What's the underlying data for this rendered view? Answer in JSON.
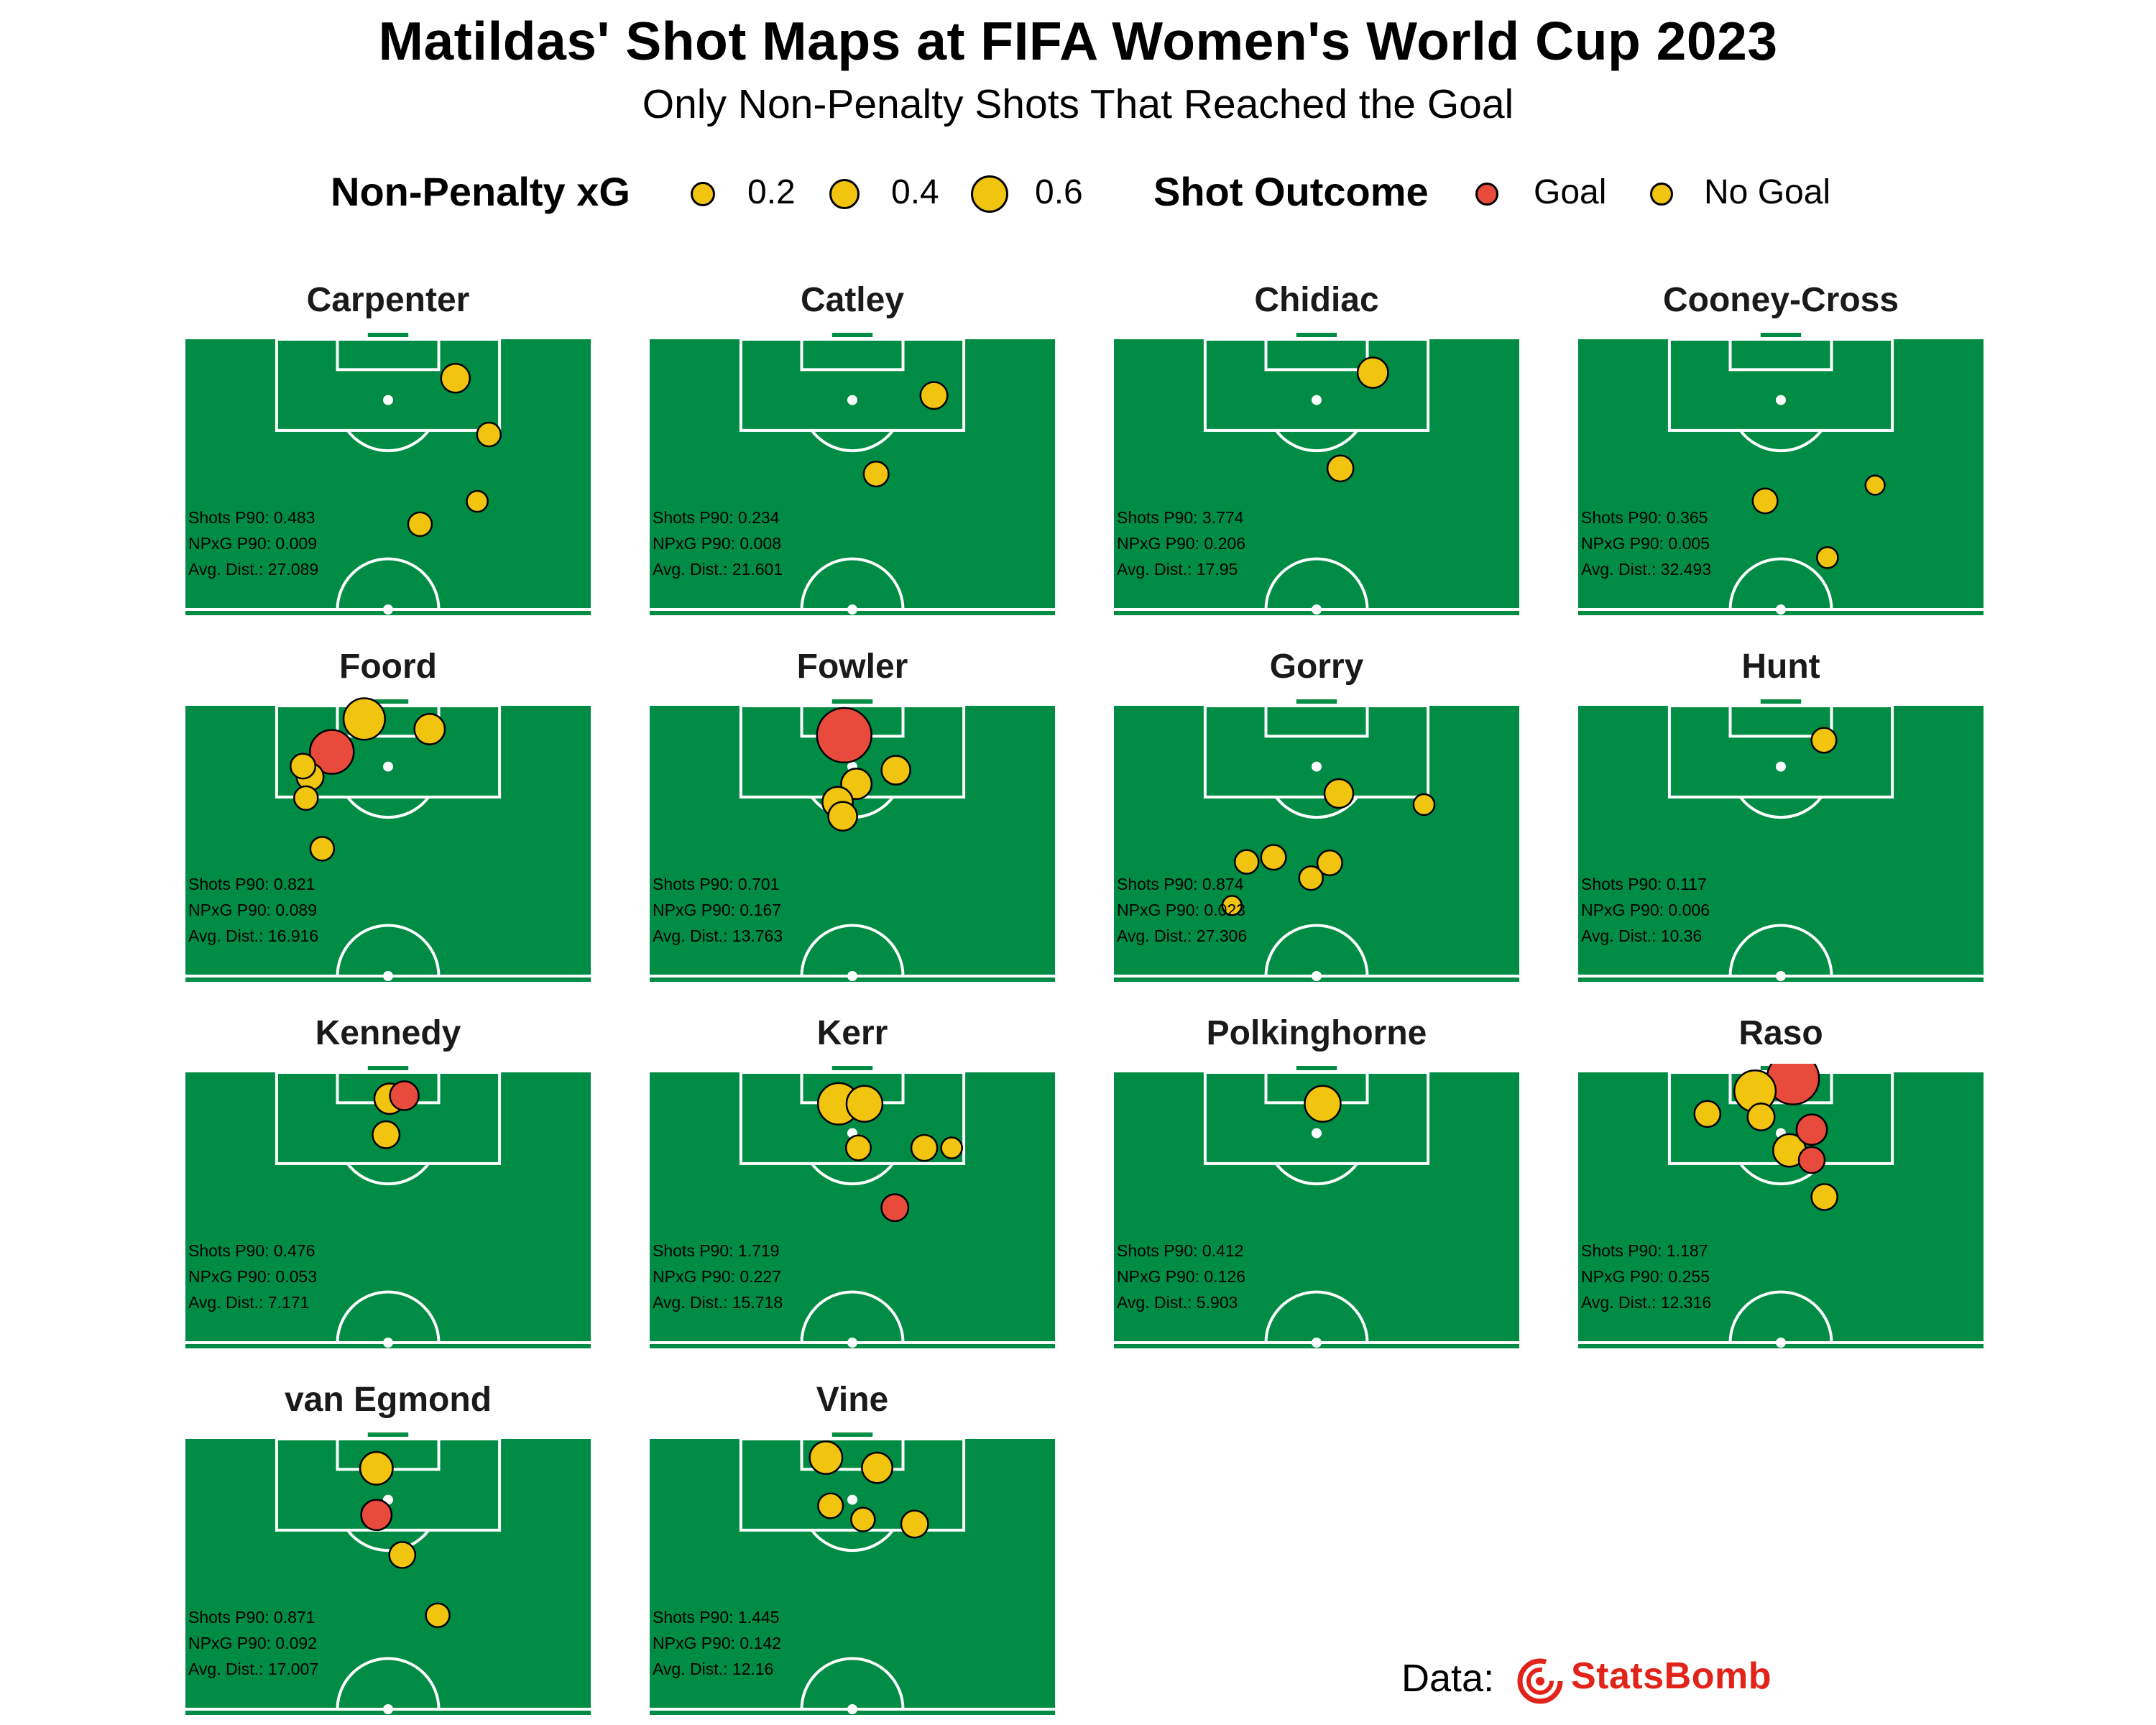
{
  "title": "Matildas' Shot Maps at FIFA Women's World Cup 2023",
  "subtitle": "Only Non-Penalty Shots That Reached the Goal",
  "legend": {
    "size_title": "Non-Penalty xG",
    "size_items": [
      {
        "label": "0.2",
        "value": 0.2
      },
      {
        "label": "0.4",
        "value": 0.4
      },
      {
        "label": "0.6",
        "value": 0.6
      }
    ],
    "outcome_title": "Shot Outcome",
    "outcome_items": [
      {
        "label": "Goal",
        "color": "#e84b3c"
      },
      {
        "label": "No Goal",
        "color": "#f1c40f"
      }
    ]
  },
  "colors": {
    "pitch": "#008c44",
    "lines": "#ffffff",
    "goal": "#e84b3c",
    "no_goal": "#f1c40f"
  },
  "credit": {
    "label": "Data:",
    "brand": "StatsBomb",
    "brand_icon": "statsbomb-logo-icon"
  },
  "chart_data": {
    "type": "scatter",
    "facet_by": "player",
    "x_axis": "pitch width (yards, 0-80)",
    "y_axis": "distance from goal line (yards)",
    "size_variable": "non-penalty xG",
    "color_variable": "shot outcome",
    "players": [
      {
        "name": "Carpenter",
        "stats": [
          "Shots P90: 0.483",
          "NPxG P90: 0.009",
          "Avg. Dist.: 27.089"
        ],
        "shots": [
          {
            "x": 53.3,
            "y": 7.7,
            "xg": 0.1,
            "outcome": "No Goal"
          },
          {
            "x": 59.9,
            "y": 18.8,
            "xg": 0.05,
            "outcome": "No Goal"
          },
          {
            "x": 57.6,
            "y": 32,
            "xg": 0.03,
            "outcome": "No Goal"
          },
          {
            "x": 46.3,
            "y": 36.5,
            "xg": 0.05,
            "outcome": "No Goal"
          }
        ]
      },
      {
        "name": "Catley",
        "stats": [
          "Shots P90: 0.234",
          "NPxG P90: 0.008",
          "Avg. Dist.: 21.601"
        ],
        "shots": [
          {
            "x": 56.1,
            "y": 11.1,
            "xg": 0.08,
            "outcome": "No Goal"
          },
          {
            "x": 44.7,
            "y": 26.6,
            "xg": 0.06,
            "outcome": "No Goal"
          }
        ]
      },
      {
        "name": "Chidiac",
        "stats": [
          "Shots P90: 3.774",
          "NPxG P90: 0.206",
          "Avg. Dist.: 17.95"
        ],
        "shots": [
          {
            "x": 51.1,
            "y": 6.6,
            "xg": 0.12,
            "outcome": "No Goal"
          },
          {
            "x": 44.7,
            "y": 25.5,
            "xg": 0.07,
            "outcome": "No Goal"
          }
        ]
      },
      {
        "name": "Cooney-Cross",
        "stats": [
          "Shots P90: 0.365",
          "NPxG P90: 0.005",
          "Avg. Dist.: 32.493"
        ],
        "shots": [
          {
            "x": 58.6,
            "y": 28.8,
            "xg": 0.02,
            "outcome": "No Goal"
          },
          {
            "x": 36.9,
            "y": 31.9,
            "xg": 0.06,
            "outcome": "No Goal"
          },
          {
            "x": 49.2,
            "y": 43.1,
            "xg": 0.03,
            "outcome": "No Goal"
          }
        ]
      },
      {
        "name": "Foord",
        "stats": [
          "Shots P90: 0.821",
          "NPxG P90: 0.089",
          "Avg. Dist.: 16.916"
        ],
        "shots": [
          {
            "x": 35.3,
            "y": 2.6,
            "xg": 0.3,
            "outcome": "No Goal"
          },
          {
            "x": 28.9,
            "y": 9.1,
            "xg": 0.35,
            "outcome": "Goal"
          },
          {
            "x": 48.2,
            "y": 4.6,
            "xg": 0.12,
            "outcome": "No Goal"
          },
          {
            "x": 23.2,
            "y": 11.9,
            "xg": 0.06,
            "outcome": "No Goal"
          },
          {
            "x": 24.6,
            "y": 14,
            "xg": 0.08,
            "outcome": "No Goal"
          },
          {
            "x": 23.8,
            "y": 18.2,
            "xg": 0.05,
            "outcome": "No Goal"
          },
          {
            "x": 27,
            "y": 28.2,
            "xg": 0.05,
            "outcome": "No Goal"
          }
        ]
      },
      {
        "name": "Fowler",
        "stats": [
          "Shots P90: 0.701",
          "NPxG P90: 0.167",
          "Avg. Dist.: 13.763"
        ],
        "shots": [
          {
            "x": 38.4,
            "y": 5.8,
            "xg": 0.62,
            "outcome": "Goal"
          },
          {
            "x": 48.6,
            "y": 12.7,
            "xg": 0.1,
            "outcome": "No Goal"
          },
          {
            "x": 40.8,
            "y": 15.4,
            "xg": 0.12,
            "outcome": "No Goal"
          },
          {
            "x": 37.1,
            "y": 19,
            "xg": 0.12,
            "outcome": "No Goal"
          },
          {
            "x": 38.1,
            "y": 21.8,
            "xg": 0.1,
            "outcome": "No Goal"
          }
        ]
      },
      {
        "name": "Gorry",
        "stats": [
          "Shots P90: 0.874",
          "NPxG P90: 0.023",
          "Avg. Dist.: 27.306"
        ],
        "shots": [
          {
            "x": 44.4,
            "y": 17.3,
            "xg": 0.1,
            "outcome": "No Goal"
          },
          {
            "x": 61.2,
            "y": 19.5,
            "xg": 0.03,
            "outcome": "No Goal"
          },
          {
            "x": 26.2,
            "y": 30.8,
            "xg": 0.05,
            "outcome": "No Goal"
          },
          {
            "x": 31.5,
            "y": 29.9,
            "xg": 0.06,
            "outcome": "No Goal"
          },
          {
            "x": 42.6,
            "y": 31,
            "xg": 0.06,
            "outcome": "No Goal"
          },
          {
            "x": 38.9,
            "y": 34,
            "xg": 0.05,
            "outcome": "No Goal"
          },
          {
            "x": 23.3,
            "y": 39.4,
            "xg": 0.02,
            "outcome": "No Goal"
          }
        ]
      },
      {
        "name": "Hunt",
        "stats": [
          "Shots P90: 0.117",
          "NPxG P90: 0.006",
          "Avg. Dist.: 10.36"
        ],
        "shots": [
          {
            "x": 48.5,
            "y": 6.8,
            "xg": 0.06,
            "outcome": "No Goal"
          }
        ]
      },
      {
        "name": "Kennedy",
        "stats": [
          "Shots P90: 0.476",
          "NPxG P90: 0.053",
          "Avg. Dist.: 7.171"
        ],
        "shots": [
          {
            "x": 40.3,
            "y": 5.2,
            "xg": 0.12,
            "outcome": "No Goal"
          },
          {
            "x": 43.2,
            "y": 4.6,
            "xg": 0.1,
            "outcome": "Goal"
          },
          {
            "x": 39.6,
            "y": 12.3,
            "xg": 0.08,
            "outcome": "No Goal"
          }
        ]
      },
      {
        "name": "Kerr",
        "stats": [
          "Shots P90: 1.719",
          "NPxG P90: 0.227",
          "Avg. Dist.: 15.718"
        ],
        "shots": [
          {
            "x": 37.3,
            "y": 6.2,
            "xg": 0.3,
            "outcome": "No Goal"
          },
          {
            "x": 42.4,
            "y": 6.2,
            "xg": 0.2,
            "outcome": "No Goal"
          },
          {
            "x": 41.2,
            "y": 14.9,
            "xg": 0.06,
            "outcome": "No Goal"
          },
          {
            "x": 54.2,
            "y": 14.9,
            "xg": 0.07,
            "outcome": "No Goal"
          },
          {
            "x": 59.6,
            "y": 14.9,
            "xg": 0.03,
            "outcome": "No Goal"
          },
          {
            "x": 48.4,
            "y": 26.7,
            "xg": 0.08,
            "outcome": "Goal"
          }
        ]
      },
      {
        "name": "Polkinghorne",
        "stats": [
          "Shots P90: 0.412",
          "NPxG P90: 0.126",
          "Avg. Dist.: 5.903"
        ],
        "shots": [
          {
            "x": 41.2,
            "y": 6.2,
            "xg": 0.2,
            "outcome": "No Goal"
          }
        ]
      },
      {
        "name": "Raso",
        "stats": [
          "Shots P90: 1.187",
          "NPxG P90: 0.255",
          "Avg. Dist.: 12.316"
        ],
        "shots": [
          {
            "x": 42.4,
            "y": 1.2,
            "xg": 0.55,
            "outcome": "Goal"
          },
          {
            "x": 34.9,
            "y": 3.7,
            "xg": 0.3,
            "outcome": "No Goal"
          },
          {
            "x": 36.1,
            "y": 8.8,
            "xg": 0.08,
            "outcome": "No Goal"
          },
          {
            "x": 25.5,
            "y": 8.2,
            "xg": 0.07,
            "outcome": "No Goal"
          },
          {
            "x": 46.1,
            "y": 11.3,
            "xg": 0.12,
            "outcome": "Goal"
          },
          {
            "x": 41.7,
            "y": 15.4,
            "xg": 0.15,
            "outcome": "No Goal"
          },
          {
            "x": 46.1,
            "y": 17.3,
            "xg": 0.07,
            "outcome": "Goal"
          },
          {
            "x": 48.6,
            "y": 24.6,
            "xg": 0.07,
            "outcome": "No Goal"
          }
        ]
      },
      {
        "name": "van Egmond",
        "stats": [
          "Shots P90: 0.871",
          "NPxG P90: 0.092",
          "Avg. Dist.: 17.007"
        ],
        "shots": [
          {
            "x": 37.7,
            "y": 5.8,
            "xg": 0.15,
            "outcome": "No Goal"
          },
          {
            "x": 37.7,
            "y": 15,
            "xg": 0.12,
            "outcome": "Goal"
          },
          {
            "x": 42.8,
            "y": 22.9,
            "xg": 0.07,
            "outcome": "No Goal"
          },
          {
            "x": 49.8,
            "y": 34.8,
            "xg": 0.05,
            "outcome": "No Goal"
          }
        ]
      },
      {
        "name": "Vine",
        "stats": [
          "Shots P90: 1.445",
          "NPxG P90: 0.142",
          "Avg. Dist.: 12.16"
        ],
        "shots": [
          {
            "x": 34.8,
            "y": 3.7,
            "xg": 0.15,
            "outcome": "No Goal"
          },
          {
            "x": 44.9,
            "y": 5.7,
            "xg": 0.12,
            "outcome": "No Goal"
          },
          {
            "x": 35.7,
            "y": 13.2,
            "xg": 0.06,
            "outcome": "No Goal"
          },
          {
            "x": 42.1,
            "y": 15.9,
            "xg": 0.05,
            "outcome": "No Goal"
          },
          {
            "x": 52.3,
            "y": 16.8,
            "xg": 0.08,
            "outcome": "No Goal"
          }
        ]
      }
    ]
  }
}
